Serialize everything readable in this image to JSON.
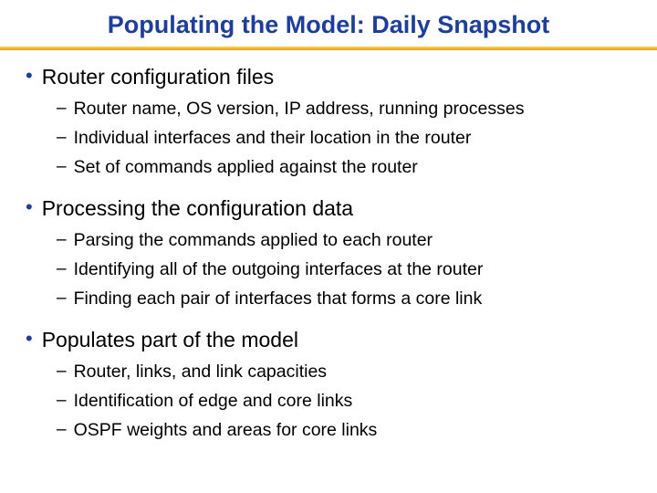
{
  "title": "Populating the Model: Daily Snapshot",
  "colors": {
    "title_color": "#1e3e9e",
    "bullet_dot_color": "#1e3e9e",
    "text_color": "#000000",
    "divider_top": "#f9c843",
    "divider_bottom": "#e8a830",
    "background": "#ffffff"
  },
  "typography": {
    "title_fontsize": 27,
    "title_weight": "bold",
    "l1_fontsize": 23,
    "l2_fontsize": 19.5,
    "font_family": "Verdana"
  },
  "sections": [
    {
      "label": "Router configuration files",
      "items": [
        "Router name, OS version, IP address, running processes",
        "Individual interfaces and their location in the router",
        "Set of commands applied against the router"
      ]
    },
    {
      "label": "Processing the configuration data",
      "items": [
        "Parsing the commands applied to each router",
        "Identifying all of the outgoing interfaces at the router",
        "Finding each pair of interfaces that forms a core link"
      ]
    },
    {
      "label": "Populates part of the model",
      "items": [
        "Router, links, and link capacities",
        "Identification of edge and core links",
        "OSPF weights and areas for core links"
      ]
    }
  ]
}
